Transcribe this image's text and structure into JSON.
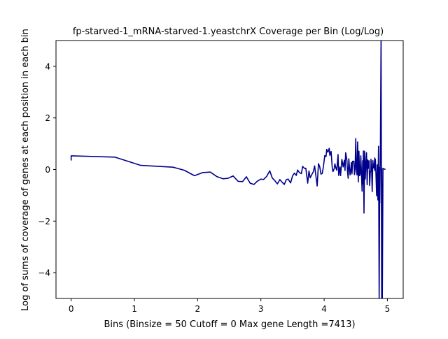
{
  "chart_data": {
    "type": "line",
    "title": "fp-starved-1_mRNA-starved-1.yeastchrX Coverage per Bin (Log/Log)",
    "xlabel": "Bins  (Binsize = 50 Cutoff = 0 Max gene Length =7413)",
    "ylabel": "Log of sums of coverage of genes at each position in each bin",
    "xlim": [
      -0.24,
      5.25
    ],
    "ylim": [
      -5.0,
      5.0
    ],
    "xticks": [
      0,
      1,
      2,
      3,
      4,
      5
    ],
    "yticks": [
      -4,
      -2,
      0,
      2,
      4
    ],
    "xtick_labels": [
      "0",
      "1",
      "2",
      "3",
      "4",
      "5"
    ],
    "ytick_labels": [
      "−4",
      "−2",
      "0",
      "2",
      "4"
    ],
    "grid": false,
    "legend": "none",
    "line_color": "#00008b",
    "series": [
      {
        "x": [
          0,
          0,
          0.69,
          1.1,
          1.61,
          1.79,
          1.95,
          2.08,
          2.2,
          2.3,
          2.4,
          2.48,
          2.56,
          2.64,
          2.71,
          2.77,
          2.83,
          2.89,
          2.94,
          3.0,
          3.04,
          3.09,
          3.14,
          3.18,
          3.22,
          3.26,
          3.3,
          3.33,
          3.37,
          3.4,
          3.43,
          3.47,
          3.5,
          3.53,
          3.56,
          3.58,
          3.61,
          3.64,
          3.66,
          3.69,
          3.71,
          3.74,
          3.76,
          3.78,
          3.81,
          3.83,
          3.85,
          3.87,
          3.89,
          3.91,
          3.93,
          3.95,
          3.97,
          3.99,
          4.01,
          4.03,
          4.04,
          4.06,
          4.08,
          4.09,
          4.11,
          4.13,
          4.14,
          4.16,
          4.17,
          4.19,
          4.2,
          4.22,
          4.23,
          4.25,
          4.26,
          4.28,
          4.29,
          4.3,
          4.32,
          4.33,
          4.34,
          4.36,
          4.37,
          4.38,
          4.39,
          4.41,
          4.42,
          4.43,
          4.44,
          4.45,
          4.47,
          4.48,
          4.49,
          4.5,
          4.51,
          4.52,
          4.53,
          4.54,
          4.55,
          4.56,
          4.57,
          4.58,
          4.6,
          4.61,
          4.62,
          4.62,
          4.63,
          4.64,
          4.65,
          4.66,
          4.67,
          4.68,
          4.69,
          4.7,
          4.71,
          4.72,
          4.73,
          4.74,
          4.74,
          4.75,
          4.76,
          4.77,
          4.78,
          4.79,
          4.8,
          4.8,
          4.81,
          4.82,
          4.83,
          4.84,
          4.84,
          4.85,
          4.86,
          4.87,
          4.88,
          4.88,
          4.89,
          4.9,
          4.91,
          4.91,
          4.92,
          4.93,
          4.93,
          4.94,
          4.95,
          4.96,
          4.97
        ],
        "y": [
          0.35,
          0.53,
          0.48,
          0.16,
          0.09,
          -0.03,
          -0.24,
          -0.12,
          -0.1,
          -0.27,
          -0.36,
          -0.34,
          -0.25,
          -0.46,
          -0.47,
          -0.28,
          -0.53,
          -0.58,
          -0.46,
          -0.37,
          -0.39,
          -0.27,
          -0.05,
          -0.33,
          -0.43,
          -0.56,
          -0.39,
          -0.48,
          -0.58,
          -0.4,
          -0.37,
          -0.52,
          -0.25,
          -0.14,
          -0.23,
          -0.02,
          -0.12,
          -0.16,
          0.12,
          0.04,
          0.05,
          -0.53,
          -0.06,
          -0.32,
          -0.17,
          -0.08,
          0.14,
          -0.26,
          -0.64,
          0.23,
          0.11,
          -0.18,
          -0.15,
          0.14,
          0.54,
          0.5,
          0.78,
          0.67,
          0.82,
          0.55,
          0.7,
          0.01,
          -0.08,
          0.04,
          0.22,
          0.03,
          -0.03,
          0.58,
          -0.23,
          0.1,
          -0.24,
          0.39,
          0.27,
          0.1,
          0.36,
          -0.04,
          0.65,
          0.36,
          -0.1,
          -0.34,
          0.42,
          -0.21,
          -0.06,
          0.27,
          -0.17,
          0.32,
          0.32,
          -0.2,
          0.04,
          1.2,
          -0.01,
          -0.21,
          1.07,
          -0.48,
          0.71,
          -0.24,
          -0.2,
          0.53,
          -0.84,
          0.34,
          -0.57,
          0.72,
          -1.69,
          0.71,
          -0.37,
          0.23,
          0.65,
          -0.59,
          0.37,
          0.05,
          0.34,
          -0.62,
          -0.1,
          -0.03,
          0.4,
          0.1,
          -0.86,
          0.35,
          0.08,
          0.05,
          0.45,
          -0.04,
          0.4,
          -0.21,
          -1.02,
          0.18,
          0.17,
          -1.18,
          0.9,
          -5.0,
          0.09,
          -1.3,
          1.0,
          5.0,
          -5.0,
          0.03,
          -5.0,
          0.05,
          0.03,
          0.02,
          0.02,
          0.01,
          0.01
        ]
      }
    ]
  }
}
